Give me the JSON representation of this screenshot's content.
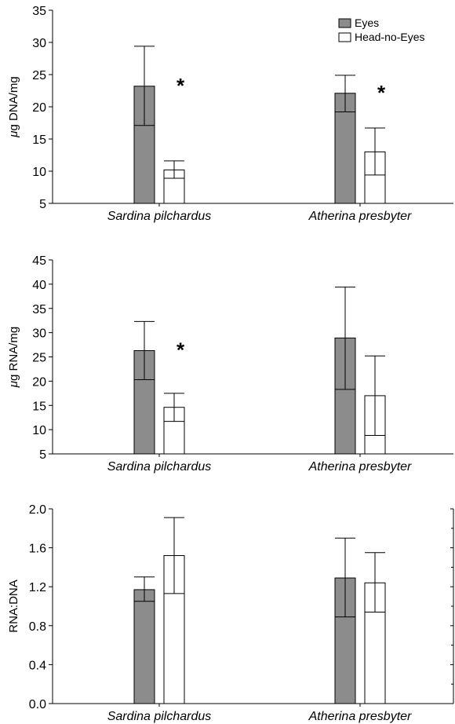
{
  "legend": {
    "position": "top-right",
    "items": [
      {
        "label": "Eyes",
        "color": "#8c8c8c"
      },
      {
        "label": "Head-no-Eyes",
        "color": "#ffffff"
      }
    ]
  },
  "chart_data": [
    {
      "type": "bar",
      "ylabel_prefix": "μ",
      "ylabel": "g DNA/mg",
      "ylim": [
        5,
        35
      ],
      "yticks": [
        5,
        10,
        15,
        20,
        25,
        30,
        35
      ],
      "ytick_labels": [
        "5",
        "10",
        "15",
        "20",
        "25",
        "30",
        "35"
      ],
      "categories": [
        "Sardina pilchardus",
        "Atherina presbyter"
      ],
      "series": [
        {
          "name": "Eyes",
          "color": "#8c8c8c",
          "values": [
            23.2,
            22.1
          ],
          "err_low": [
            17.1,
            19.2
          ],
          "err_high": [
            29.4,
            24.9
          ]
        },
        {
          "name": "Head-no-Eyes",
          "color": "#ffffff",
          "values": [
            10.2,
            13.0
          ],
          "err_low": [
            8.9,
            9.4
          ],
          "err_high": [
            11.6,
            16.7
          ]
        }
      ],
      "annotations": [
        {
          "text": "*",
          "category": 0,
          "series": 1
        },
        {
          "text": "*",
          "category": 1,
          "series": 1
        }
      ]
    },
    {
      "type": "bar",
      "ylabel_prefix": "μ",
      "ylabel": "g RNA/mg",
      "ylim": [
        5,
        45
      ],
      "yticks": [
        5,
        10,
        15,
        20,
        25,
        30,
        35,
        40,
        45
      ],
      "ytick_labels": [
        "5",
        "10",
        "15",
        "20",
        "25",
        "30",
        "35",
        "40",
        "45"
      ],
      "categories": [
        "Sardina pilchardus",
        "Atherina presbyter"
      ],
      "series": [
        {
          "name": "Eyes",
          "color": "#8c8c8c",
          "values": [
            26.3,
            28.9
          ],
          "err_low": [
            20.3,
            18.3
          ],
          "err_high": [
            32.3,
            39.4
          ]
        },
        {
          "name": "Head-no-Eyes",
          "color": "#ffffff",
          "values": [
            14.6,
            17.0
          ],
          "err_low": [
            11.7,
            8.8
          ],
          "err_high": [
            17.5,
            25.2
          ]
        }
      ],
      "annotations": [
        {
          "text": "*",
          "category": 0,
          "series": 1
        }
      ]
    },
    {
      "type": "bar",
      "ylabel_prefix": "",
      "ylabel": "RNA:DNA",
      "ylim": [
        0.0,
        2.0
      ],
      "yticks": [
        0.0,
        0.4,
        0.8,
        1.2,
        1.6,
        2.0
      ],
      "ytick_labels": [
        "0.0",
        "0.4",
        "0.8",
        "1.2",
        "1.6",
        "2.0"
      ],
      "categories": [
        "Sardina pilchardus",
        "Atherina presbyter"
      ],
      "series": [
        {
          "name": "Eyes",
          "color": "#8c8c8c",
          "values": [
            1.17,
            1.29
          ],
          "err_low": [
            1.05,
            0.89
          ],
          "err_high": [
            1.3,
            1.7
          ]
        },
        {
          "name": "Head-no-Eyes",
          "color": "#ffffff",
          "values": [
            1.52,
            1.24
          ],
          "err_low": [
            1.13,
            0.94
          ],
          "err_high": [
            1.91,
            1.55
          ]
        }
      ],
      "annotations": []
    }
  ]
}
